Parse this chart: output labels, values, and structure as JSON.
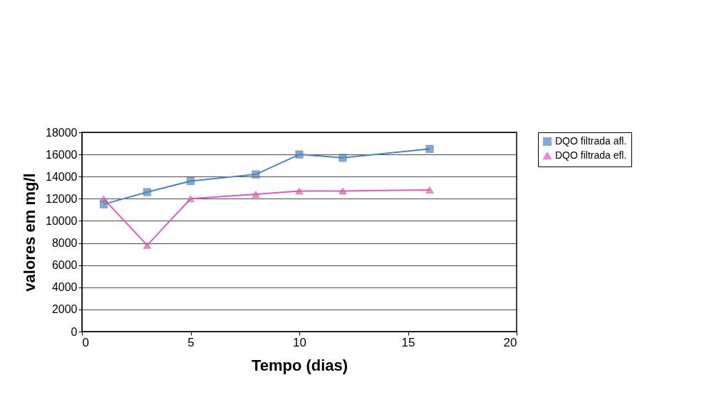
{
  "chart_data": {
    "type": "line",
    "xlabel": "Tempo (dias)",
    "ylabel": "valores em mg/l",
    "xlim": [
      0,
      20
    ],
    "xticks": [
      0,
      5,
      10,
      15,
      20
    ],
    "ylim": [
      0,
      18000
    ],
    "yticks": [
      0,
      2000,
      4000,
      6000,
      8000,
      10000,
      12000,
      14000,
      16000,
      18000
    ],
    "grid": "y",
    "legend": "right",
    "series": [
      {
        "name": "DQO filtrada afl.",
        "color": "#4a86c8",
        "marker": "square",
        "x": [
          1,
          3,
          5,
          8,
          10,
          12,
          16
        ],
        "values": [
          11500,
          12600,
          13600,
          14200,
          16000,
          15700,
          16500
        ]
      },
      {
        "name": "DQO filtrada efl.",
        "color": "#e855c8",
        "marker": "triangle",
        "x": [
          1,
          3,
          5,
          8,
          10,
          12,
          16
        ],
        "values": [
          12000,
          7800,
          12000,
          12400,
          12700,
          12700,
          12800
        ]
      }
    ]
  }
}
